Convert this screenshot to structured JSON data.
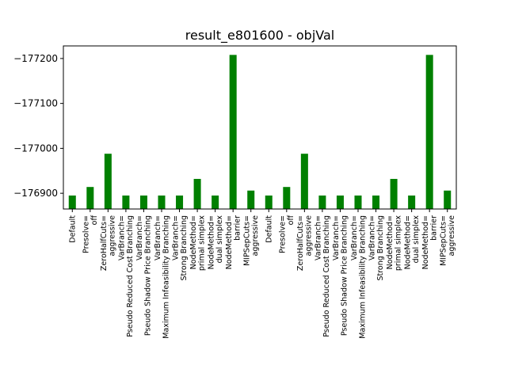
{
  "chart_data": {
    "type": "bar",
    "title": "result_e801600 - objVal",
    "xlabel": "",
    "ylabel": "",
    "ylim": [
      -176865,
      -177228
    ],
    "y_inverted": true,
    "yticks": [
      -176900,
      -177000,
      -177100,
      -177200
    ],
    "ytick_labels": [
      "−176900",
      "−177000",
      "−177100",
      "−177200"
    ],
    "grid": false,
    "bar_color": "#008000",
    "categories": [
      [
        "Default"
      ],
      [
        "Presolve=",
        "off"
      ],
      [
        "ZeroHalfCuts=",
        "aggressive"
      ],
      [
        "VarBranch=",
        "Pseudo Reduced Cost Branching"
      ],
      [
        "VarBranch=",
        "Pseudo Shadow Price Branching"
      ],
      [
        "VarBranch=",
        "Maximum Infeasibility Branching"
      ],
      [
        "VarBranch=",
        "Strong Branching"
      ],
      [
        "NodeMethod=",
        "primal simplex"
      ],
      [
        "NodeMethod=",
        "dual simplex"
      ],
      [
        "NodeMethod=",
        "barrier"
      ],
      [
        "MIPSepCuts=",
        "aggressive"
      ],
      [
        "Default"
      ],
      [
        "Presolve=",
        "off"
      ],
      [
        "ZeroHalfCuts=",
        "aggressive"
      ],
      [
        "VarBranch=",
        "Pseudo Reduced Cost Branching"
      ],
      [
        "VarBranch=",
        "Pseudo Shadow Price Branching"
      ],
      [
        "VarBranch=",
        "Maximum Infeasibility Branching"
      ],
      [
        "VarBranch=",
        "Strong Branching"
      ],
      [
        "NodeMethod=",
        "primal simplex"
      ],
      [
        "NodeMethod=",
        "dual simplex"
      ],
      [
        "NodeMethod=",
        "barrier"
      ],
      [
        "MIPSepCuts=",
        "aggressive"
      ]
    ],
    "values": [
      -176895,
      -176914,
      -176988,
      -176895,
      -176895,
      -176895,
      -176895,
      -176932,
      -176895,
      -177208,
      -176906,
      -176895,
      -176914,
      -176988,
      -176895,
      -176895,
      -176895,
      -176895,
      -176932,
      -176895,
      -177208,
      -176906
    ]
  }
}
